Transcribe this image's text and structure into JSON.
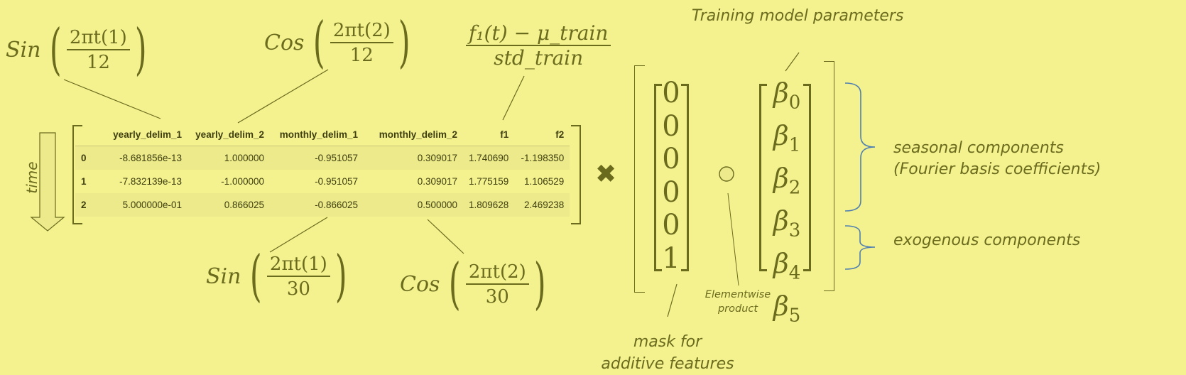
{
  "formulas": {
    "top_left": {
      "fn": "Sin",
      "num": "2πt(1)",
      "den": "12"
    },
    "top_mid": {
      "fn": "Cos",
      "num": "2πt(2)",
      "den": "12"
    },
    "top_right": {
      "num": "f₁(t) − μ_train",
      "den": "std_train"
    },
    "bottom_left": {
      "fn": "Sin",
      "num": "2πt(1)",
      "den": "30"
    },
    "bottom_right": {
      "fn": "Cos",
      "num": "2πt(2)",
      "den": "30"
    }
  },
  "table": {
    "headers": [
      "",
      "yearly_delim_1",
      "yearly_delim_2",
      "monthly_delim_1",
      "monthly_delim_2",
      "f1",
      "f2"
    ],
    "rows": [
      [
        "0",
        "-8.681856e-13",
        "1.000000",
        "-0.951057",
        "0.309017",
        "1.740690",
        "-1.198350"
      ],
      [
        "1",
        "-7.832139e-13",
        "-1.000000",
        "-0.951057",
        "0.309017",
        "1.775159",
        "1.106529"
      ],
      [
        "2",
        "5.000000e-01",
        "0.866025",
        "-0.866025",
        "0.500000",
        "1.809628",
        "2.469238"
      ]
    ]
  },
  "time_label": "time",
  "times_symbol": "✖",
  "mask_vector": [
    "0",
    "0",
    "0",
    "0",
    "0",
    "1"
  ],
  "beta_vector": [
    "0",
    "1",
    "2",
    "3",
    "4",
    "5"
  ],
  "beta_symbol": "β",
  "elementwise_symbol": "○",
  "labels": {
    "training_params": "Training model parameters",
    "seasonal_1": "seasonal components",
    "seasonal_2": "(Fourier basis coefficients)",
    "exogenous": "exogenous components",
    "elementwise_1": "Elementwise",
    "elementwise_2": "product",
    "mask_1": "mask for",
    "mask_2": "additive features"
  },
  "colors": {
    "background": "#f4f28f",
    "ink": "#6b6b1e",
    "brace": "#4f7fb0"
  }
}
